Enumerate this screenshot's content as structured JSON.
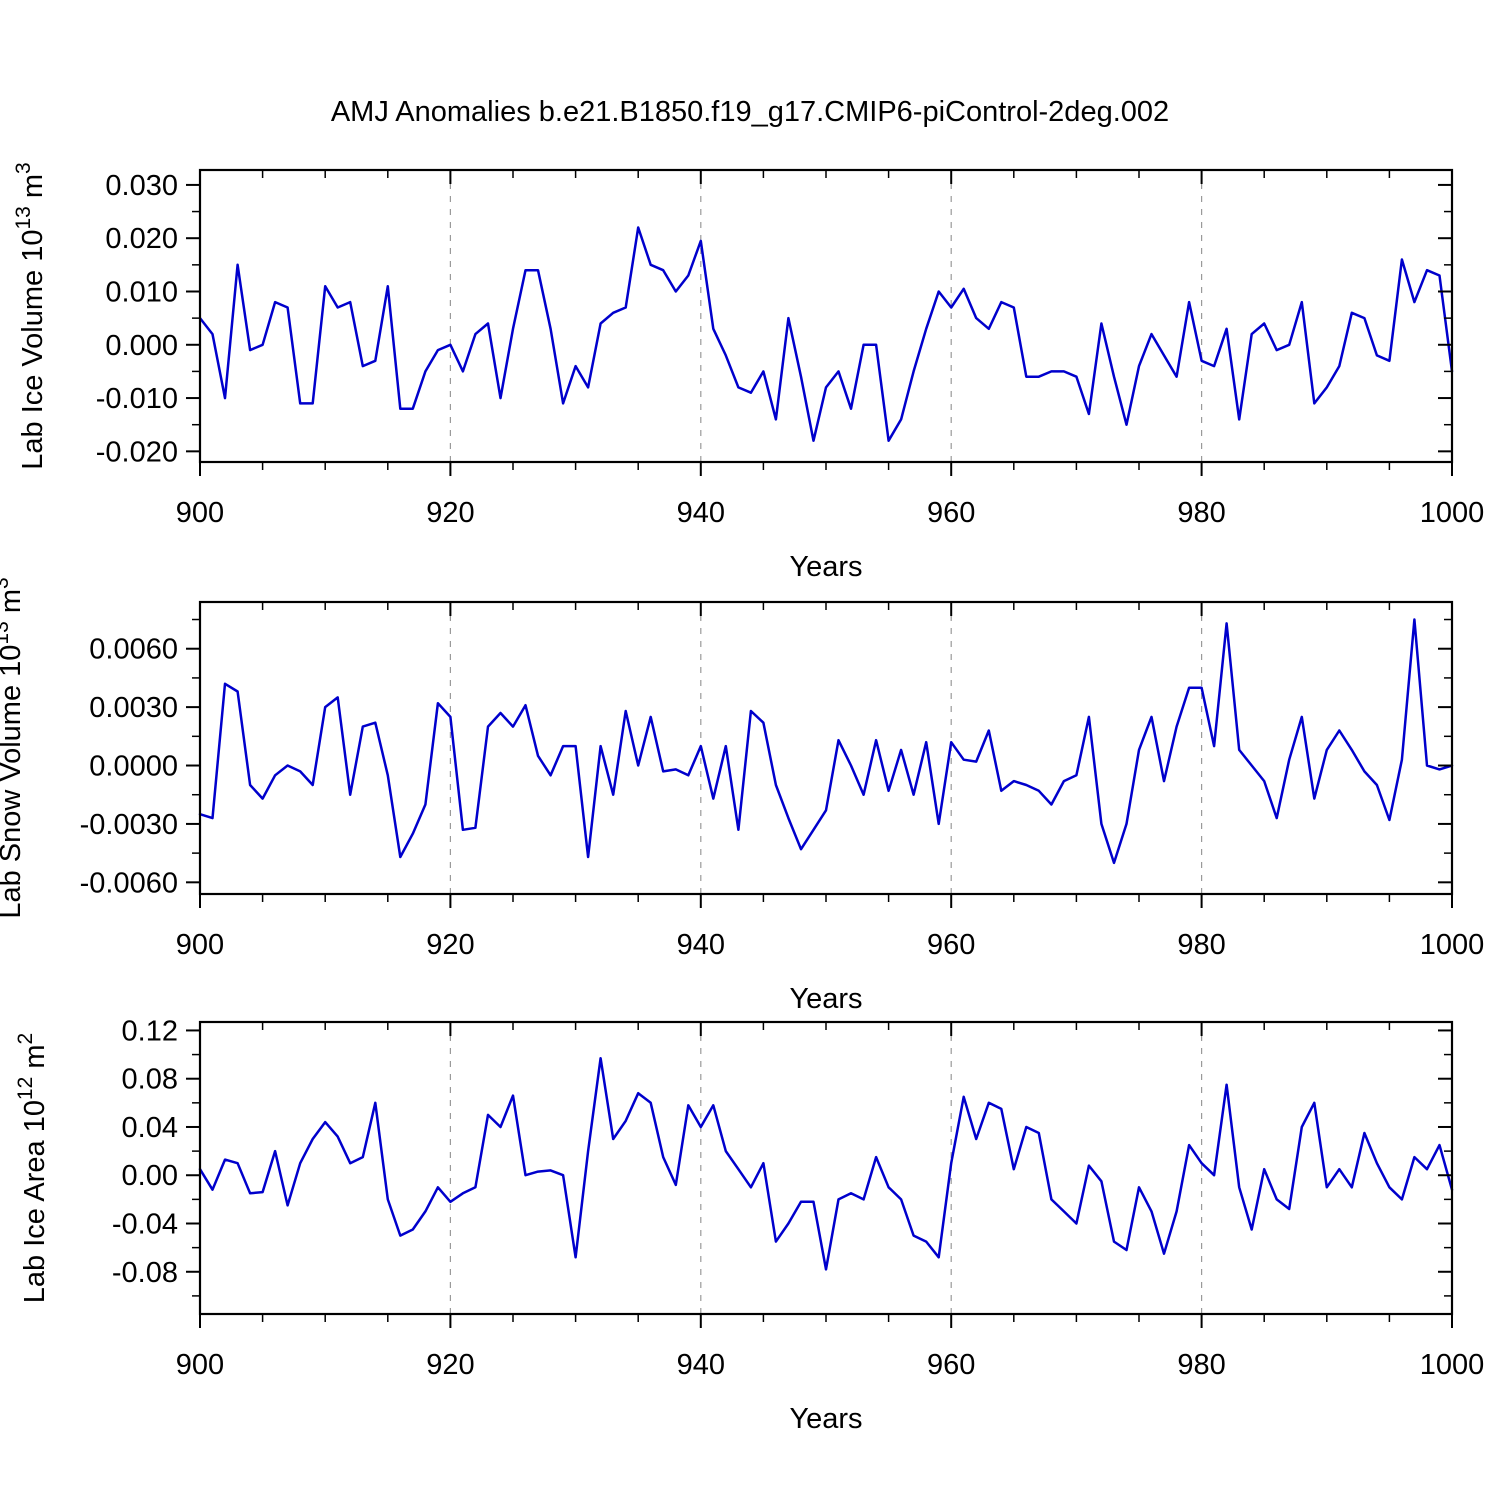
{
  "title": "AMJ Anomalies b.e21.B1850.f19_g17.CMIP6-piControl-2deg.002",
  "colors": {
    "line": "#0000cc",
    "grid": "#9a9a9a",
    "axis": "#000000"
  },
  "chart_data": [
    {
      "type": "line",
      "name": "lab-ice-volume",
      "xlabel": "Years",
      "ylabel_rich": [
        {
          "text": "Lab Ice Volume 10",
          "sup": false
        },
        {
          "text": "13",
          "sup": true
        },
        {
          "text": " m",
          "sup": false
        },
        {
          "text": "3",
          "sup": true
        }
      ],
      "x_start": 900,
      "x_step": 1,
      "xlim": [
        900,
        1000
      ],
      "ylim": [
        -0.022,
        0.0328
      ],
      "x_ticks": {
        "values": [
          900,
          920,
          940,
          960,
          980,
          1000
        ],
        "labels": [
          "900",
          "920",
          "940",
          "960",
          "980",
          "1000"
        ]
      },
      "x_minor": [
        905,
        910,
        915,
        925,
        930,
        935,
        945,
        950,
        955,
        965,
        970,
        975,
        985,
        990,
        995
      ],
      "y_ticks": {
        "values": [
          -0.02,
          -0.01,
          0.0,
          0.01,
          0.02,
          0.03
        ],
        "labels": [
          "-0.020",
          "-0.010",
          "0.000",
          "0.010",
          "0.020",
          "0.030"
        ]
      },
      "y_minor": [
        -0.015,
        -0.005,
        0.005,
        0.015,
        0.025
      ],
      "grid_x": [
        920,
        940,
        960,
        980
      ],
      "grid_on": true,
      "legend": "none",
      "values": [
        0.005,
        0.002,
        -0.01,
        0.015,
        -0.001,
        0.0,
        0.008,
        0.007,
        -0.011,
        -0.011,
        0.011,
        0.007,
        0.008,
        -0.004,
        -0.003,
        0.011,
        -0.012,
        -0.012,
        -0.005,
        -0.001,
        0.0,
        -0.005,
        0.002,
        0.004,
        -0.01,
        0.003,
        0.014,
        0.014,
        0.003,
        -0.011,
        -0.004,
        -0.008,
        0.004,
        0.006,
        0.007,
        0.022,
        0.015,
        0.014,
        0.01,
        0.013,
        0.0195,
        0.003,
        -0.002,
        -0.008,
        -0.009,
        -0.005,
        -0.014,
        0.005,
        -0.006,
        -0.018,
        -0.008,
        -0.005,
        -0.012,
        0.0,
        0.0,
        -0.018,
        -0.014,
        -0.005,
        0.003,
        0.01,
        0.007,
        0.0105,
        0.005,
        0.003,
        0.008,
        0.007,
        -0.006,
        -0.006,
        -0.005,
        -0.005,
        -0.006,
        -0.013,
        0.004,
        -0.006,
        -0.015,
        -0.004,
        0.002,
        -0.002,
        -0.006,
        0.008,
        -0.003,
        -0.004,
        0.003,
        -0.014,
        0.002,
        0.004,
        -0.001,
        0.0,
        0.008,
        -0.011,
        -0.008,
        -0.004,
        0.006,
        0.005,
        -0.002,
        -0.003,
        0.016,
        0.008,
        0.014,
        0.013,
        -0.005
      ]
    },
    {
      "type": "line",
      "name": "lab-snow-volume",
      "xlabel": "Years",
      "ylabel_rich": [
        {
          "text": "Lab Snow Volume 10",
          "sup": false
        },
        {
          "text": "13",
          "sup": true
        },
        {
          "text": " m",
          "sup": false
        },
        {
          "text": "3",
          "sup": true
        }
      ],
      "x_start": 900,
      "x_step": 1,
      "xlim": [
        900,
        1000
      ],
      "ylim": [
        -0.0066,
        0.0084
      ],
      "x_ticks": {
        "values": [
          900,
          920,
          940,
          960,
          980,
          1000
        ],
        "labels": [
          "900",
          "920",
          "940",
          "960",
          "980",
          "1000"
        ]
      },
      "x_minor": [
        905,
        910,
        915,
        925,
        930,
        935,
        945,
        950,
        955,
        965,
        970,
        975,
        985,
        990,
        995
      ],
      "y_ticks": {
        "values": [
          -0.006,
          -0.003,
          0.0,
          0.003,
          0.006
        ],
        "labels": [
          "-0.0060",
          "-0.0030",
          "0.0000",
          "0.0030",
          "0.0060"
        ]
      },
      "y_minor": [
        -0.0045,
        -0.0015,
        0.0015,
        0.0045,
        0.0075
      ],
      "grid_x": [
        920,
        940,
        960,
        980
      ],
      "grid_on": true,
      "legend": "none",
      "values": [
        -0.0025,
        -0.0027,
        0.0042,
        0.0038,
        -0.001,
        -0.0017,
        -0.0005,
        0.0,
        -0.0003,
        -0.001,
        0.003,
        0.0035,
        -0.0015,
        0.002,
        0.0022,
        -0.0005,
        -0.0047,
        -0.0035,
        -0.002,
        0.0032,
        0.0025,
        -0.0033,
        -0.0032,
        0.002,
        0.0027,
        0.002,
        0.0031,
        0.0005,
        -0.0005,
        0.001,
        0.001,
        -0.0047,
        0.001,
        -0.0015,
        0.0028,
        0.0,
        0.0025,
        -0.0003,
        -0.0002,
        -0.0005,
        0.001,
        -0.0017,
        0.001,
        -0.0033,
        0.0028,
        0.0022,
        -0.001,
        -0.0027,
        -0.0043,
        -0.0033,
        -0.0023,
        0.0013,
        0.0,
        -0.0015,
        0.0013,
        -0.0013,
        0.0008,
        -0.0015,
        0.0012,
        -0.003,
        0.0012,
        0.0003,
        0.0002,
        0.0018,
        -0.0013,
        -0.0008,
        -0.001,
        -0.0013,
        -0.002,
        -0.0008,
        -0.0005,
        0.0025,
        -0.003,
        -0.005,
        -0.003,
        0.0008,
        0.0025,
        -0.0008,
        0.002,
        0.004,
        0.004,
        0.001,
        0.0073,
        0.0008,
        0.0,
        -0.0008,
        -0.0027,
        0.0003,
        0.0025,
        -0.0017,
        0.0008,
        0.0018,
        0.0008,
        -0.0003,
        -0.001,
        -0.0028,
        0.0003,
        0.0075,
        0.0,
        -0.0002,
        0.0
      ]
    },
    {
      "type": "line",
      "name": "lab-ice-area",
      "xlabel": "Years",
      "ylabel_rich": [
        {
          "text": "Lab Ice Area 10",
          "sup": false
        },
        {
          "text": "12",
          "sup": true
        },
        {
          "text": " m",
          "sup": false
        },
        {
          "text": "2",
          "sup": true
        }
      ],
      "x_start": 900,
      "x_step": 1,
      "xlim": [
        900,
        1000
      ],
      "ylim": [
        -0.115,
        0.127
      ],
      "x_ticks": {
        "values": [
          900,
          920,
          940,
          960,
          980,
          1000
        ],
        "labels": [
          "900",
          "920",
          "940",
          "960",
          "980",
          "1000"
        ]
      },
      "x_minor": [
        905,
        910,
        915,
        925,
        930,
        935,
        945,
        950,
        955,
        965,
        970,
        975,
        985,
        990,
        995
      ],
      "y_ticks": {
        "values": [
          -0.08,
          -0.04,
          0.0,
          0.04,
          0.08,
          0.12
        ],
        "labels": [
          "-0.08",
          "-0.04",
          "0.00",
          "0.04",
          "0.08",
          "0.12"
        ]
      },
      "y_minor": [
        -0.1,
        -0.06,
        -0.02,
        0.02,
        0.06,
        0.1
      ],
      "grid_x": [
        920,
        940,
        960,
        980
      ],
      "grid_on": true,
      "legend": "none",
      "values": [
        0.005,
        -0.012,
        0.013,
        0.01,
        -0.015,
        -0.014,
        0.02,
        -0.025,
        0.01,
        0.03,
        0.044,
        0.032,
        0.01,
        0.015,
        0.06,
        -0.02,
        -0.05,
        -0.045,
        -0.03,
        -0.01,
        -0.022,
        -0.015,
        -0.01,
        0.05,
        0.04,
        0.066,
        0.0,
        0.003,
        0.004,
        0.0,
        -0.068,
        0.02,
        0.097,
        0.03,
        0.045,
        0.068,
        0.06,
        0.015,
        -0.008,
        0.058,
        0.04,
        0.058,
        0.02,
        0.005,
        -0.01,
        0.01,
        -0.055,
        -0.04,
        -0.022,
        -0.022,
        -0.078,
        -0.02,
        -0.015,
        -0.02,
        0.015,
        -0.01,
        -0.02,
        -0.05,
        -0.055,
        -0.068,
        0.01,
        0.065,
        0.03,
        0.06,
        0.055,
        0.005,
        0.04,
        0.035,
        -0.02,
        -0.03,
        -0.04,
        0.008,
        -0.005,
        -0.055,
        -0.062,
        -0.01,
        -0.03,
        -0.065,
        -0.03,
        0.025,
        0.01,
        0.0,
        0.075,
        -0.01,
        -0.045,
        0.005,
        -0.02,
        -0.028,
        0.04,
        0.06,
        -0.01,
        0.005,
        -0.01,
        0.035,
        0.01,
        -0.01,
        -0.02,
        0.015,
        0.005,
        0.025,
        -0.012
      ]
    }
  ]
}
